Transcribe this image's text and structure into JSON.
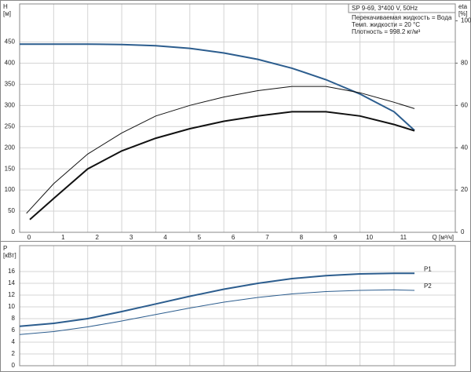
{
  "chart_data": [
    {
      "type": "line",
      "title": "SP 9-69, 3*400 V, 50Hz",
      "annotations": [
        "Перекачиваемая жидкость = Вода",
        "Темп. жидкости = 20 °C",
        "Плотность = 998.2 кг/м³"
      ],
      "ylabel": [
        "H",
        "[м]"
      ],
      "y2label": [
        "eta",
        "[%]"
      ],
      "xlabel": "Q [м³/ч]",
      "xlim": [
        0,
        12.8
      ],
      "xticks": [
        0,
        1,
        2,
        3,
        4,
        5,
        6,
        7,
        8,
        9,
        10,
        11
      ],
      "ylim": [
        0,
        540
      ],
      "yticks": [
        0,
        50,
        100,
        150,
        200,
        250,
        300,
        350,
        400,
        450
      ],
      "y2lim": [
        0,
        108
      ],
      "y2ticks": [
        0,
        20,
        40,
        60,
        80,
        100
      ],
      "grid": true,
      "series": [
        {
          "color": "#2c5d8e",
          "width": 2,
          "x": [
            0,
            1,
            2,
            3,
            4,
            5,
            6,
            7,
            8,
            9,
            10,
            11,
            11.6
          ],
          "values": [
            445,
            445,
            445,
            444,
            441,
            435,
            424,
            409,
            388,
            361,
            327,
            285,
            241
          ]
        },
        {
          "color": "#111111",
          "width": 1,
          "axis": "y2",
          "x": [
            0.2,
            1,
            2,
            3,
            4,
            5,
            6,
            7,
            8,
            9,
            10,
            11,
            11.6
          ],
          "values": [
            9,
            23,
            37,
            47,
            55,
            60,
            64,
            67,
            69,
            69,
            66,
            61.5,
            58.5
          ]
        },
        {
          "color": "#111111",
          "width": 2,
          "axis": "y2",
          "x": [
            0.3,
            1,
            2,
            3,
            4,
            5,
            6,
            7,
            8,
            9,
            10,
            11,
            11.6
          ],
          "values": [
            6,
            16,
            30,
            38.5,
            44.5,
            49,
            52.5,
            55,
            57,
            57,
            55,
            51,
            48
          ]
        }
      ]
    },
    {
      "type": "line",
      "ylabel": [
        "P",
        "[кВт]"
      ],
      "xlim": [
        0,
        12.8
      ],
      "xticks": [
        0,
        1,
        2,
        3,
        4,
        5,
        6,
        7,
        8,
        9,
        10,
        11
      ],
      "ylim": [
        0,
        20.4
      ],
      "yticks": [
        0,
        2,
        4,
        6,
        8,
        10,
        12,
        14,
        16
      ],
      "grid": true,
      "series": [
        {
          "name": "P1",
          "color": "#2c5d8e",
          "width": 2,
          "x": [
            0,
            1,
            2,
            3,
            4,
            5,
            6,
            7,
            8,
            9,
            10,
            11,
            11.6
          ],
          "values": [
            6.7,
            7.2,
            8.0,
            9.2,
            10.5,
            11.8,
            13.0,
            14.0,
            14.8,
            15.3,
            15.6,
            15.7,
            15.7
          ]
        },
        {
          "name": "P2",
          "color": "#2c5d8e",
          "width": 1,
          "x": [
            0,
            1,
            2,
            3,
            4,
            5,
            6,
            7,
            8,
            9,
            10,
            11,
            11.6
          ],
          "values": [
            5.3,
            5.8,
            6.6,
            7.6,
            8.7,
            9.8,
            10.8,
            11.6,
            12.2,
            12.6,
            12.8,
            12.9,
            12.8
          ]
        }
      ]
    }
  ]
}
